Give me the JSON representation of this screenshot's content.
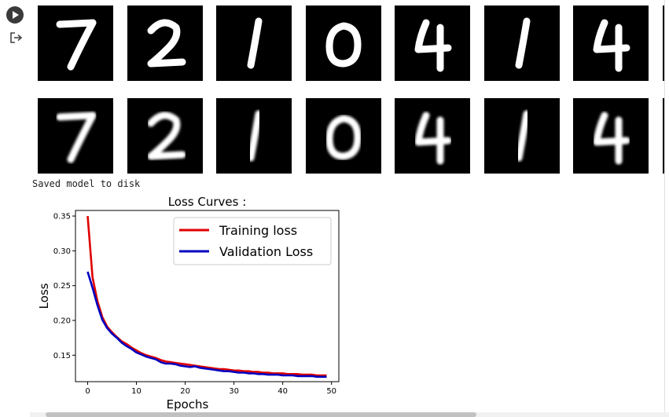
{
  "cell": {
    "run_icon": "play-circle-icon",
    "output_icon": "output-redirect-icon"
  },
  "images": {
    "original_row": [
      "7",
      "2",
      "1",
      "0",
      "4",
      "1",
      "4"
    ],
    "reconstructed_row": [
      "7",
      "2",
      "1",
      "0",
      "4",
      "1",
      "4"
    ]
  },
  "stdout": "Saved model to disk",
  "chart_data": {
    "type": "line",
    "title": "Loss Curves :",
    "xlabel": "Epochs",
    "ylabel": "Loss",
    "xlim": [
      -2.5,
      51.5
    ],
    "ylim": [
      0.112,
      0.358
    ],
    "xticks": [
      0,
      10,
      20,
      30,
      40,
      50
    ],
    "yticks": [
      0.15,
      0.2,
      0.25,
      0.3,
      0.35
    ],
    "ytick_labels": [
      "0.15",
      "0.20",
      "0.25",
      "0.30",
      "0.35"
    ],
    "legend_position": "upper right",
    "grid": false,
    "series": [
      {
        "name": "Training loss",
        "color": "#e00000",
        "x": [
          0,
          1,
          2,
          3,
          4,
          5,
          6,
          7,
          8,
          9,
          10,
          11,
          12,
          13,
          14,
          15,
          16,
          17,
          18,
          19,
          20,
          21,
          22,
          23,
          24,
          25,
          26,
          27,
          28,
          29,
          30,
          31,
          32,
          33,
          34,
          35,
          36,
          37,
          38,
          39,
          40,
          41,
          42,
          43,
          44,
          45,
          46,
          47,
          48,
          49
        ],
        "values": [
          0.35,
          0.262,
          0.228,
          0.205,
          0.191,
          0.183,
          0.176,
          0.17,
          0.166,
          0.161,
          0.157,
          0.153,
          0.15,
          0.148,
          0.146,
          0.143,
          0.141,
          0.14,
          0.139,
          0.138,
          0.137,
          0.136,
          0.135,
          0.134,
          0.133,
          0.132,
          0.131,
          0.13,
          0.13,
          0.129,
          0.128,
          0.128,
          0.127,
          0.127,
          0.126,
          0.126,
          0.125,
          0.125,
          0.124,
          0.124,
          0.124,
          0.123,
          0.123,
          0.123,
          0.122,
          0.122,
          0.122,
          0.121,
          0.121,
          0.121
        ]
      },
      {
        "name": "Validation Loss",
        "color": "#0000c0",
        "x": [
          0,
          1,
          2,
          3,
          4,
          5,
          6,
          7,
          8,
          9,
          10,
          11,
          12,
          13,
          14,
          15,
          16,
          17,
          18,
          19,
          20,
          21,
          22,
          23,
          24,
          25,
          26,
          27,
          28,
          29,
          30,
          31,
          32,
          33,
          34,
          35,
          36,
          37,
          38,
          39,
          40,
          41,
          42,
          43,
          44,
          45,
          46,
          47,
          48,
          49
        ],
        "values": [
          0.27,
          0.247,
          0.222,
          0.201,
          0.189,
          0.181,
          0.175,
          0.168,
          0.163,
          0.159,
          0.154,
          0.151,
          0.148,
          0.146,
          0.144,
          0.14,
          0.138,
          0.138,
          0.137,
          0.135,
          0.134,
          0.133,
          0.134,
          0.132,
          0.131,
          0.13,
          0.129,
          0.128,
          0.127,
          0.127,
          0.126,
          0.125,
          0.125,
          0.124,
          0.124,
          0.123,
          0.123,
          0.122,
          0.122,
          0.122,
          0.121,
          0.121,
          0.121,
          0.12,
          0.12,
          0.12,
          0.12,
          0.119,
          0.119,
          0.119
        ]
      }
    ]
  }
}
